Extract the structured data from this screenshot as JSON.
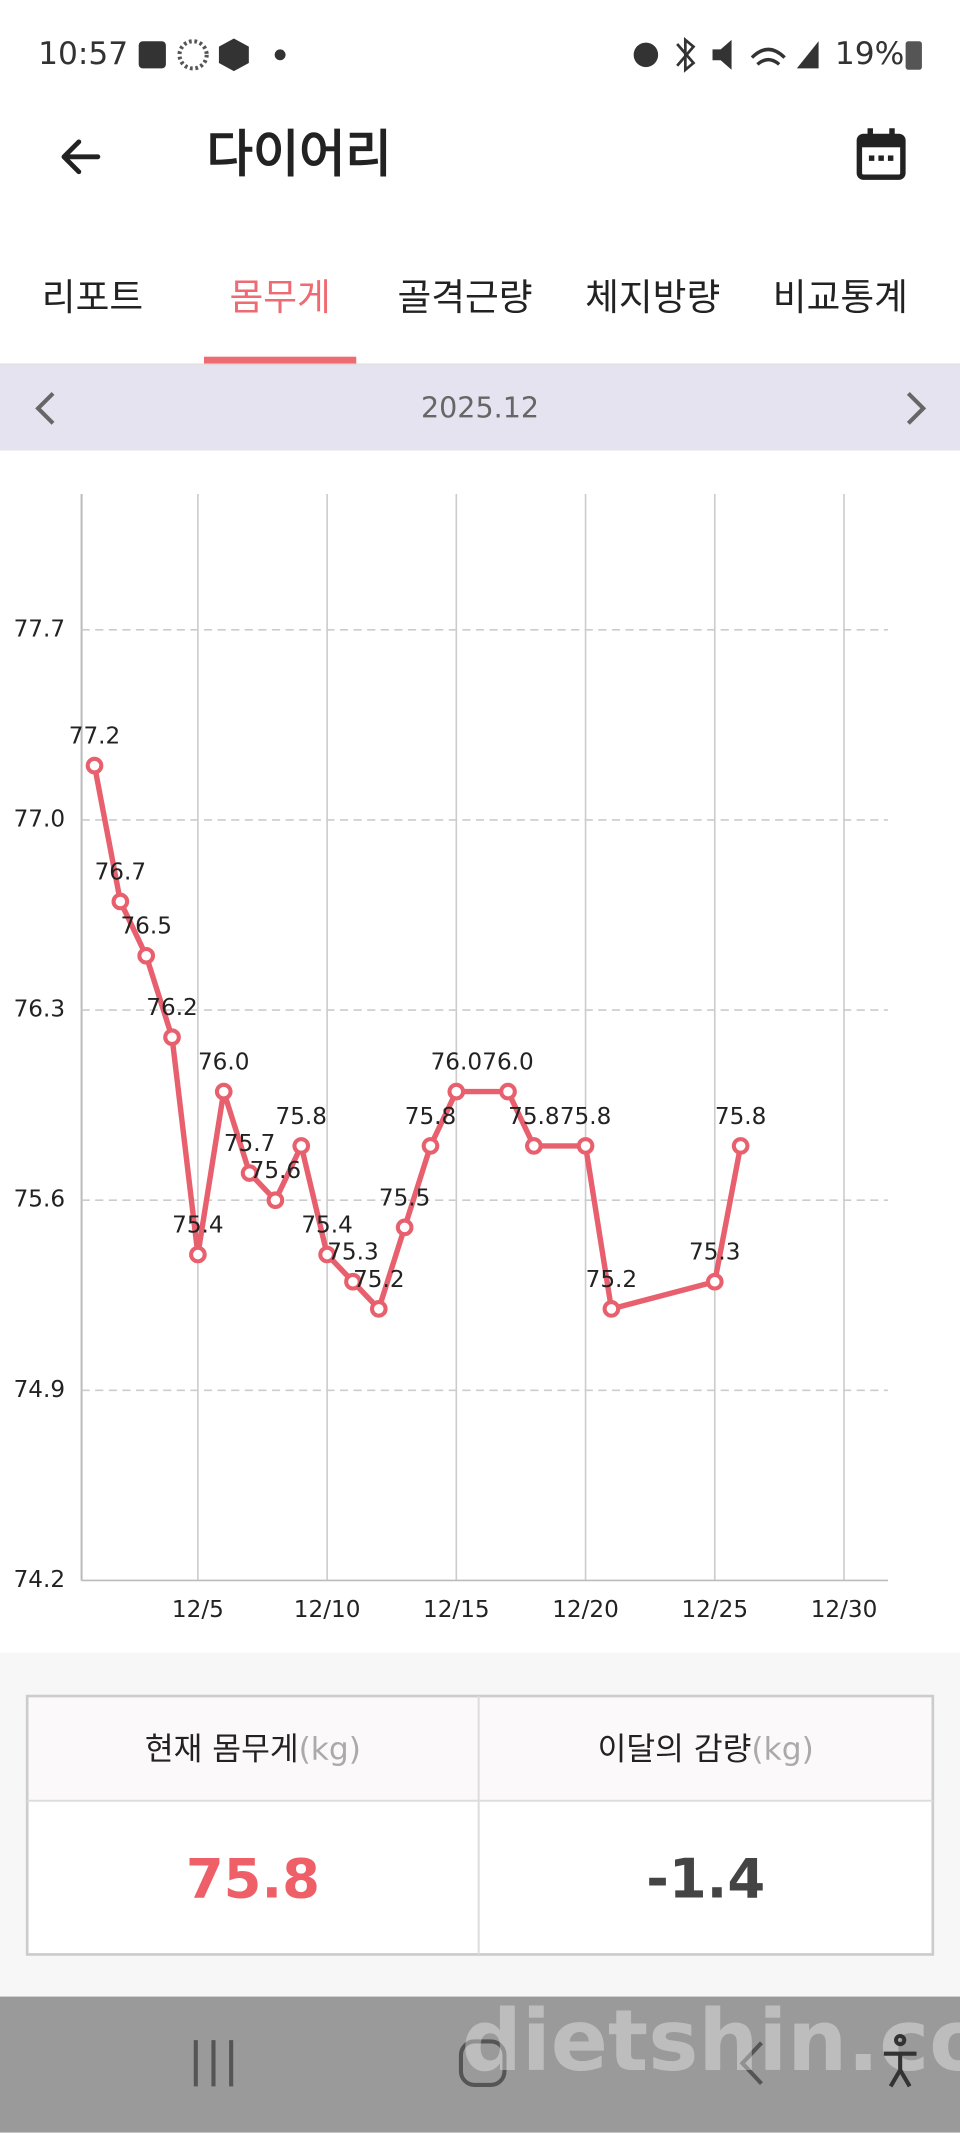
{
  "status": {
    "time": "10:57",
    "battery": "19%"
  },
  "header": {
    "title": "다이어리"
  },
  "tabs": [
    "리포트",
    "몸무게",
    "골격근량",
    "체지방량",
    "비교통계"
  ],
  "month": "2025.12",
  "chart_data": {
    "type": "line",
    "x": [
      1,
      2,
      3,
      4,
      5,
      6,
      7,
      8,
      9,
      10,
      11,
      12,
      13,
      14,
      15,
      17,
      18,
      20,
      21,
      25,
      26
    ],
    "values": [
      77.2,
      76.7,
      76.5,
      76.2,
      75.4,
      76.0,
      75.7,
      75.6,
      75.8,
      75.4,
      75.3,
      75.2,
      75.5,
      75.8,
      76.0,
      76.0,
      75.8,
      75.8,
      75.2,
      75.3,
      75.8
    ],
    "value_labels": [
      "77.2",
      "76.7",
      "76.5",
      "76.2",
      "75.4",
      "76.0",
      "75.7",
      "75.6",
      "75.8",
      "75.4",
      "75.3",
      "75.2",
      "75.5",
      "75.8",
      "76.0",
      "76.0",
      "75.8",
      "75.8",
      "75.2",
      "75.3",
      "75.8"
    ],
    "color": "#e8606e",
    "xlim": [
      0.5,
      31.7
    ],
    "xticks": [
      {
        "value": 5,
        "label": "12/5"
      },
      {
        "value": 10,
        "label": "12/10"
      },
      {
        "value": 15,
        "label": "12/15"
      },
      {
        "value": 20,
        "label": "12/20"
      },
      {
        "value": 25,
        "label": "12/25"
      },
      {
        "value": 30,
        "label": "12/30"
      }
    ],
    "ylim": [
      74.2,
      78.2
    ],
    "yticks": [
      74.2,
      74.9,
      75.6,
      76.3,
      {
        "value": 77,
        "label": "77.0"
      },
      77.7
    ],
    "grid": true
  },
  "summary": {
    "current": {
      "label": "현재 몸무게",
      "unit": "(kg)",
      "value": "75.8"
    },
    "loss": {
      "label": "이달의 감량",
      "unit": "(kg)",
      "value": "-1.4"
    }
  },
  "watermark": "dietshin.com"
}
